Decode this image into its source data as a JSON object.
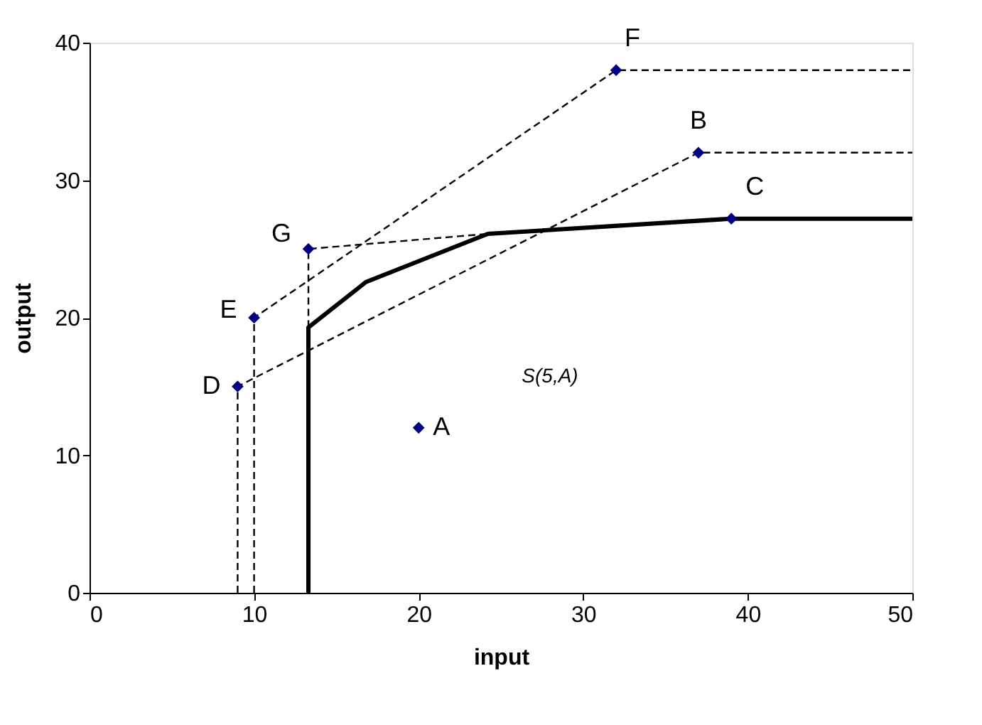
{
  "chart_data": {
    "type": "scatter",
    "xlabel": "input",
    "ylabel": "output",
    "xlim": [
      0,
      50
    ],
    "ylim": [
      0,
      40
    ],
    "xticks": [
      0,
      10,
      20,
      30,
      40,
      50
    ],
    "yticks": [
      0,
      10,
      20,
      30,
      40
    ],
    "grid": false,
    "series": [
      {
        "type": "line",
        "color": "#000000",
        "line_style": "dashed",
        "x": [
          9,
          9,
          37,
          50
        ],
        "values": [
          0,
          15,
          32,
          32
        ]
      },
      {
        "type": "line",
        "color": "#000000",
        "line_style": "dashed",
        "x": [
          10,
          10,
          32,
          50
        ],
        "values": [
          0,
          20,
          38,
          38
        ]
      },
      {
        "type": "line",
        "color": "#000000",
        "line_style": "dashed",
        "x": [
          13.3,
          13.3,
          24.2
        ],
        "values": [
          19.3,
          25,
          26.1
        ]
      },
      {
        "type": "line",
        "color": "#000000",
        "line_style": "solid",
        "x": [
          13.3,
          13.3,
          16.8,
          24.2,
          39,
          50
        ],
        "values": [
          0,
          19.3,
          22.6,
          26.1,
          27.2,
          27.2
        ]
      },
      {
        "color": "#000080",
        "marker": "diamond",
        "x": [
          20,
          37,
          39,
          9,
          10,
          32,
          13.3
        ],
        "values": [
          12,
          32,
          27.2,
          15,
          20,
          38,
          25
        ]
      }
    ],
    "annotations": [
      {
        "text": "A",
        "x": 20,
        "y": 12
      },
      {
        "text": "B",
        "x": 37,
        "y": 32
      },
      {
        "text": "C",
        "x": 39,
        "y": 27.2
      },
      {
        "text": "D",
        "x": 9,
        "y": 15
      },
      {
        "text": "E",
        "x": 10,
        "y": 20
      },
      {
        "text": "F",
        "x": 32,
        "y": 38
      },
      {
        "text": "G",
        "x": 13.3,
        "y": 25
      },
      "S(5,A)"
    ]
  }
}
